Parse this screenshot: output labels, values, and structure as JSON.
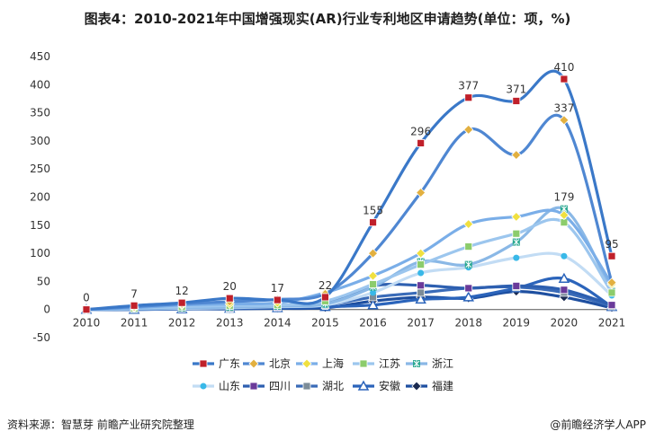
{
  "title": "图表4：2010-2021年中国增强现实(AR)行业专利地区申请趋势(单位：项，%)",
  "footer": {
    "source": "资料来源：智慧芽 前瞻产业研究院整理",
    "brand": "@前瞻经济学人APP"
  },
  "chart_data": {
    "type": "line",
    "title": "图表4：2010-2021年中国增强现实(AR)行业专利地区申请趋势(单位：项，%)",
    "x": [
      "2010",
      "2011",
      "2012",
      "2013",
      "2014",
      "2015",
      "2016",
      "2017",
      "2018",
      "2019",
      "2020",
      "2021"
    ],
    "ylim": [
      -50,
      450
    ],
    "yticks": [
      -50,
      0,
      50,
      100,
      150,
      200,
      250,
      300,
      350,
      400,
      450
    ],
    "grid": false,
    "legend_position": "bottom",
    "series": [
      {
        "name": "广东",
        "color": "#3a78c8",
        "marker": "square",
        "marker_color": "#c0202a",
        "values": [
          0,
          7,
          12,
          20,
          17,
          22,
          155,
          296,
          377,
          371,
          410,
          95
        ],
        "labels": true
      },
      {
        "name": "北京",
        "color": "#4f87d2",
        "marker": "diamond",
        "marker_color": "#e2b040",
        "values": [
          0,
          5,
          10,
          14,
          18,
          28,
          100,
          208,
          320,
          275,
          337,
          48
        ],
        "labels": [
          false,
          false,
          false,
          false,
          false,
          false,
          false,
          false,
          false,
          false,
          true,
          false
        ]
      },
      {
        "name": "上海",
        "color": "#7aaee8",
        "marker": "diamond",
        "marker_color": "#f0e040",
        "values": [
          0,
          3,
          8,
          10,
          12,
          30,
          60,
          100,
          152,
          165,
          168,
          45
        ]
      },
      {
        "name": "江苏",
        "color": "#9cc6ee",
        "marker": "square",
        "marker_color": "#8ccc6c",
        "values": [
          0,
          2,
          5,
          7,
          8,
          15,
          45,
          80,
          112,
          135,
          155,
          30
        ]
      },
      {
        "name": "浙江",
        "color": "#8ab8e6",
        "marker": "asterisk",
        "marker_color": "#2aa890",
        "values": [
          0,
          1,
          3,
          4,
          6,
          10,
          40,
          85,
          80,
          120,
          179,
          32
        ],
        "labels": [
          false,
          false,
          false,
          false,
          false,
          false,
          false,
          false,
          false,
          false,
          true,
          false
        ]
      },
      {
        "name": "山东",
        "color": "#c2dcf4",
        "marker": "circle",
        "marker_color": "#38b8e8",
        "values": [
          0,
          1,
          2,
          3,
          5,
          8,
          30,
          65,
          75,
          92,
          95,
          25
        ]
      },
      {
        "name": "四川",
        "color": "#2d5fb0",
        "marker": "square",
        "marker_color": "#6a3a9a",
        "values": [
          0,
          1,
          2,
          3,
          5,
          10,
          42,
          43,
          38,
          42,
          35,
          8
        ]
      },
      {
        "name": "湖北",
        "color": "#3a6bb8",
        "marker": "square",
        "marker_color": "#7c8c98",
        "values": [
          0,
          1,
          2,
          2,
          4,
          8,
          22,
          30,
          38,
          40,
          30,
          6
        ]
      },
      {
        "name": "安徽",
        "color": "#2b64bb",
        "marker": "triangle",
        "marker_color": "#ffffff",
        "values": [
          0,
          0,
          1,
          2,
          3,
          5,
          8,
          18,
          22,
          38,
          55,
          5
        ]
      },
      {
        "name": "福建",
        "color": "#1e4fa0",
        "marker": "diamond",
        "marker_color": "#1a2a50",
        "values": [
          0,
          0,
          1,
          1,
          2,
          3,
          15,
          22,
          20,
          32,
          22,
          3
        ]
      }
    ]
  }
}
